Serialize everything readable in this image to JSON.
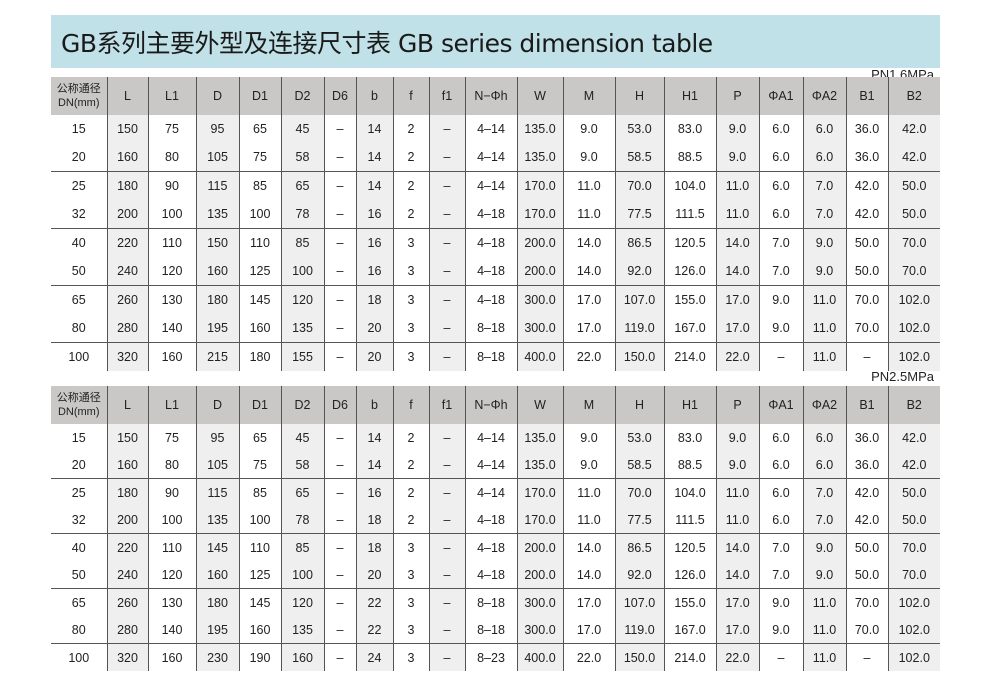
{
  "title": "GB系列主要外型及连接尺寸表 GB series dimension table",
  "columns": [
    "公称通径\nDN(mm)",
    "L",
    "L1",
    "D",
    "D1",
    "D2",
    "D6",
    "b",
    "f",
    "f1",
    "N−Φh",
    "W",
    "M",
    "H",
    "H1",
    "P",
    "ΦA1",
    "ΦA2",
    "B1",
    "B2"
  ],
  "column_header_dn_line1": "公称通径",
  "column_header_dn_line2": "DN(mm)",
  "colors": {
    "title_bar": "#c0e1e7",
    "header_bg": "#c9c8c6",
    "shaded_column": "#efefef"
  },
  "tables": [
    {
      "pressure": "PN1.6MPa",
      "rows": [
        [
          "15",
          "150",
          "75",
          "95",
          "65",
          "45",
          "–",
          "14",
          "2",
          "–",
          "4–14",
          "135.0",
          "9.0",
          "53.0",
          "83.0",
          "9.0",
          "6.0",
          "6.0",
          "36.0",
          "42.0"
        ],
        [
          "20",
          "160",
          "80",
          "105",
          "75",
          "58",
          "–",
          "14",
          "2",
          "–",
          "4–14",
          "135.0",
          "9.0",
          "58.5",
          "88.5",
          "9.0",
          "6.0",
          "6.0",
          "36.0",
          "42.0"
        ],
        [
          "25",
          "180",
          "90",
          "115",
          "85",
          "65",
          "–",
          "14",
          "2",
          "–",
          "4–14",
          "170.0",
          "11.0",
          "70.0",
          "104.0",
          "11.0",
          "6.0",
          "7.0",
          "42.0",
          "50.0"
        ],
        [
          "32",
          "200",
          "100",
          "135",
          "100",
          "78",
          "–",
          "16",
          "2",
          "–",
          "4–18",
          "170.0",
          "11.0",
          "77.5",
          "111.5",
          "11.0",
          "6.0",
          "7.0",
          "42.0",
          "50.0"
        ],
        [
          "40",
          "220",
          "110",
          "150",
          "110",
          "85",
          "–",
          "16",
          "3",
          "–",
          "4–18",
          "200.0",
          "14.0",
          "86.5",
          "120.5",
          "14.0",
          "7.0",
          "9.0",
          "50.0",
          "70.0"
        ],
        [
          "50",
          "240",
          "120",
          "160",
          "125",
          "100",
          "–",
          "16",
          "3",
          "–",
          "4–18",
          "200.0",
          "14.0",
          "92.0",
          "126.0",
          "14.0",
          "7.0",
          "9.0",
          "50.0",
          "70.0"
        ],
        [
          "65",
          "260",
          "130",
          "180",
          "145",
          "120",
          "–",
          "18",
          "3",
          "–",
          "4–18",
          "300.0",
          "17.0",
          "107.0",
          "155.0",
          "17.0",
          "9.0",
          "11.0",
          "70.0",
          "102.0"
        ],
        [
          "80",
          "280",
          "140",
          "195",
          "160",
          "135",
          "–",
          "20",
          "3",
          "–",
          "8–18",
          "300.0",
          "17.0",
          "119.0",
          "167.0",
          "17.0",
          "9.0",
          "11.0",
          "70.0",
          "102.0"
        ],
        [
          "100",
          "320",
          "160",
          "215",
          "180",
          "155",
          "–",
          "20",
          "3",
          "–",
          "8–18",
          "400.0",
          "22.0",
          "150.0",
          "214.0",
          "22.0",
          "–",
          "11.0",
          "–",
          "102.0"
        ]
      ]
    },
    {
      "pressure": "PN2.5MPa",
      "rows": [
        [
          "15",
          "150",
          "75",
          "95",
          "65",
          "45",
          "–",
          "14",
          "2",
          "–",
          "4–14",
          "135.0",
          "9.0",
          "53.0",
          "83.0",
          "9.0",
          "6.0",
          "6.0",
          "36.0",
          "42.0"
        ],
        [
          "20",
          "160",
          "80",
          "105",
          "75",
          "58",
          "–",
          "14",
          "2",
          "–",
          "4–14",
          "135.0",
          "9.0",
          "58.5",
          "88.5",
          "9.0",
          "6.0",
          "6.0",
          "36.0",
          "42.0"
        ],
        [
          "25",
          "180",
          "90",
          "115",
          "85",
          "65",
          "–",
          "16",
          "2",
          "–",
          "4–14",
          "170.0",
          "11.0",
          "70.0",
          "104.0",
          "11.0",
          "6.0",
          "7.0",
          "42.0",
          "50.0"
        ],
        [
          "32",
          "200",
          "100",
          "135",
          "100",
          "78",
          "–",
          "18",
          "2",
          "–",
          "4–18",
          "170.0",
          "11.0",
          "77.5",
          "111.5",
          "11.0",
          "6.0",
          "7.0",
          "42.0",
          "50.0"
        ],
        [
          "40",
          "220",
          "110",
          "145",
          "110",
          "85",
          "–",
          "18",
          "3",
          "–",
          "4–18",
          "200.0",
          "14.0",
          "86.5",
          "120.5",
          "14.0",
          "7.0",
          "9.0",
          "50.0",
          "70.0"
        ],
        [
          "50",
          "240",
          "120",
          "160",
          "125",
          "100",
          "–",
          "20",
          "3",
          "–",
          "4–18",
          "200.0",
          "14.0",
          "92.0",
          "126.0",
          "14.0",
          "7.0",
          "9.0",
          "50.0",
          "70.0"
        ],
        [
          "65",
          "260",
          "130",
          "180",
          "145",
          "120",
          "–",
          "22",
          "3",
          "–",
          "8–18",
          "300.0",
          "17.0",
          "107.0",
          "155.0",
          "17.0",
          "9.0",
          "11.0",
          "70.0",
          "102.0"
        ],
        [
          "80",
          "280",
          "140",
          "195",
          "160",
          "135",
          "–",
          "22",
          "3",
          "–",
          "8–18",
          "300.0",
          "17.0",
          "119.0",
          "167.0",
          "17.0",
          "9.0",
          "11.0",
          "70.0",
          "102.0"
        ],
        [
          "100",
          "320",
          "160",
          "230",
          "190",
          "160",
          "–",
          "24",
          "3",
          "–",
          "8–23",
          "400.0",
          "22.0",
          "150.0",
          "214.0",
          "22.0",
          "–",
          "11.0",
          "–",
          "102.0"
        ]
      ]
    }
  ]
}
